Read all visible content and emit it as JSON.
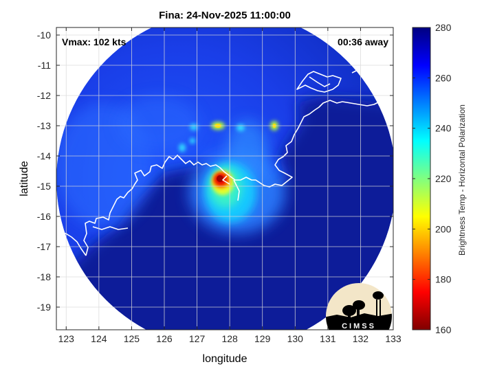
{
  "title": "Fina: 24-Nov-2025 11:00:00",
  "annotations": {
    "vmax": "Vmax: 102 kts",
    "away": "00:36 away"
  },
  "axes": {
    "xlabel": "longitude",
    "ylabel": "latitude",
    "xlim": [
      122.7,
      133
    ],
    "ylim": [
      -19.75,
      -9.75
    ],
    "xticks": [
      123,
      124,
      125,
      126,
      127,
      128,
      129,
      130,
      131,
      132,
      133
    ],
    "yticks": [
      -10,
      -11,
      -12,
      -13,
      -14,
      -15,
      -16,
      -17,
      -18,
      -19
    ],
    "grid": true
  },
  "colorbar": {
    "label": "Brightness Temp - Horizontal Polarization",
    "min": 160,
    "max": 280,
    "ticks": [
      280,
      260,
      240,
      220,
      200,
      180,
      160
    ],
    "colormap": "jet"
  },
  "storm": {
    "name": "Fina",
    "center_lon": 127.7,
    "center_lat": -14.7,
    "min_brightness_temp": 165
  },
  "logo": {
    "text": "CIMSS"
  }
}
